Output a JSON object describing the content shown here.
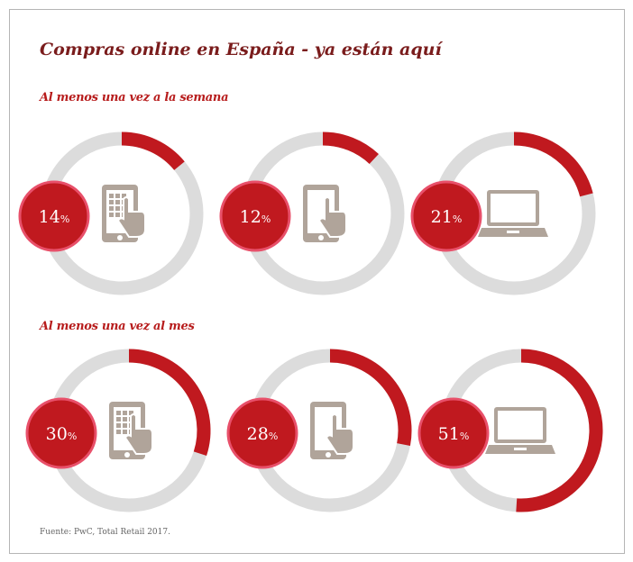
{
  "chart_data": {
    "type": "donut",
    "title": "Compras online en España - ya están aquí",
    "colors": {
      "filled": "#c0191f",
      "track": "#dcdcdc",
      "badge": "#c0191f",
      "badge_ring": "#e8506a",
      "icon": "#b0a49a"
    },
    "groups": [
      {
        "label": "Al menos una vez a la semana",
        "items": [
          {
            "device": "tablet-touch",
            "value": 14,
            "label": "14",
            "unit": "%"
          },
          {
            "device": "smartphone",
            "value": 12,
            "label": "12",
            "unit": "%"
          },
          {
            "device": "laptop",
            "value": 21,
            "label": "21",
            "unit": "%"
          }
        ]
      },
      {
        "label": "Al menos una vez al mes",
        "items": [
          {
            "device": "tablet-touch",
            "value": 30,
            "label": "30",
            "unit": "%"
          },
          {
            "device": "smartphone",
            "value": 28,
            "label": "28",
            "unit": "%"
          },
          {
            "device": "laptop",
            "value": 51,
            "label": "51",
            "unit": "%"
          }
        ]
      }
    ],
    "source": "Fuente: PwC, Total Retail 2017."
  }
}
